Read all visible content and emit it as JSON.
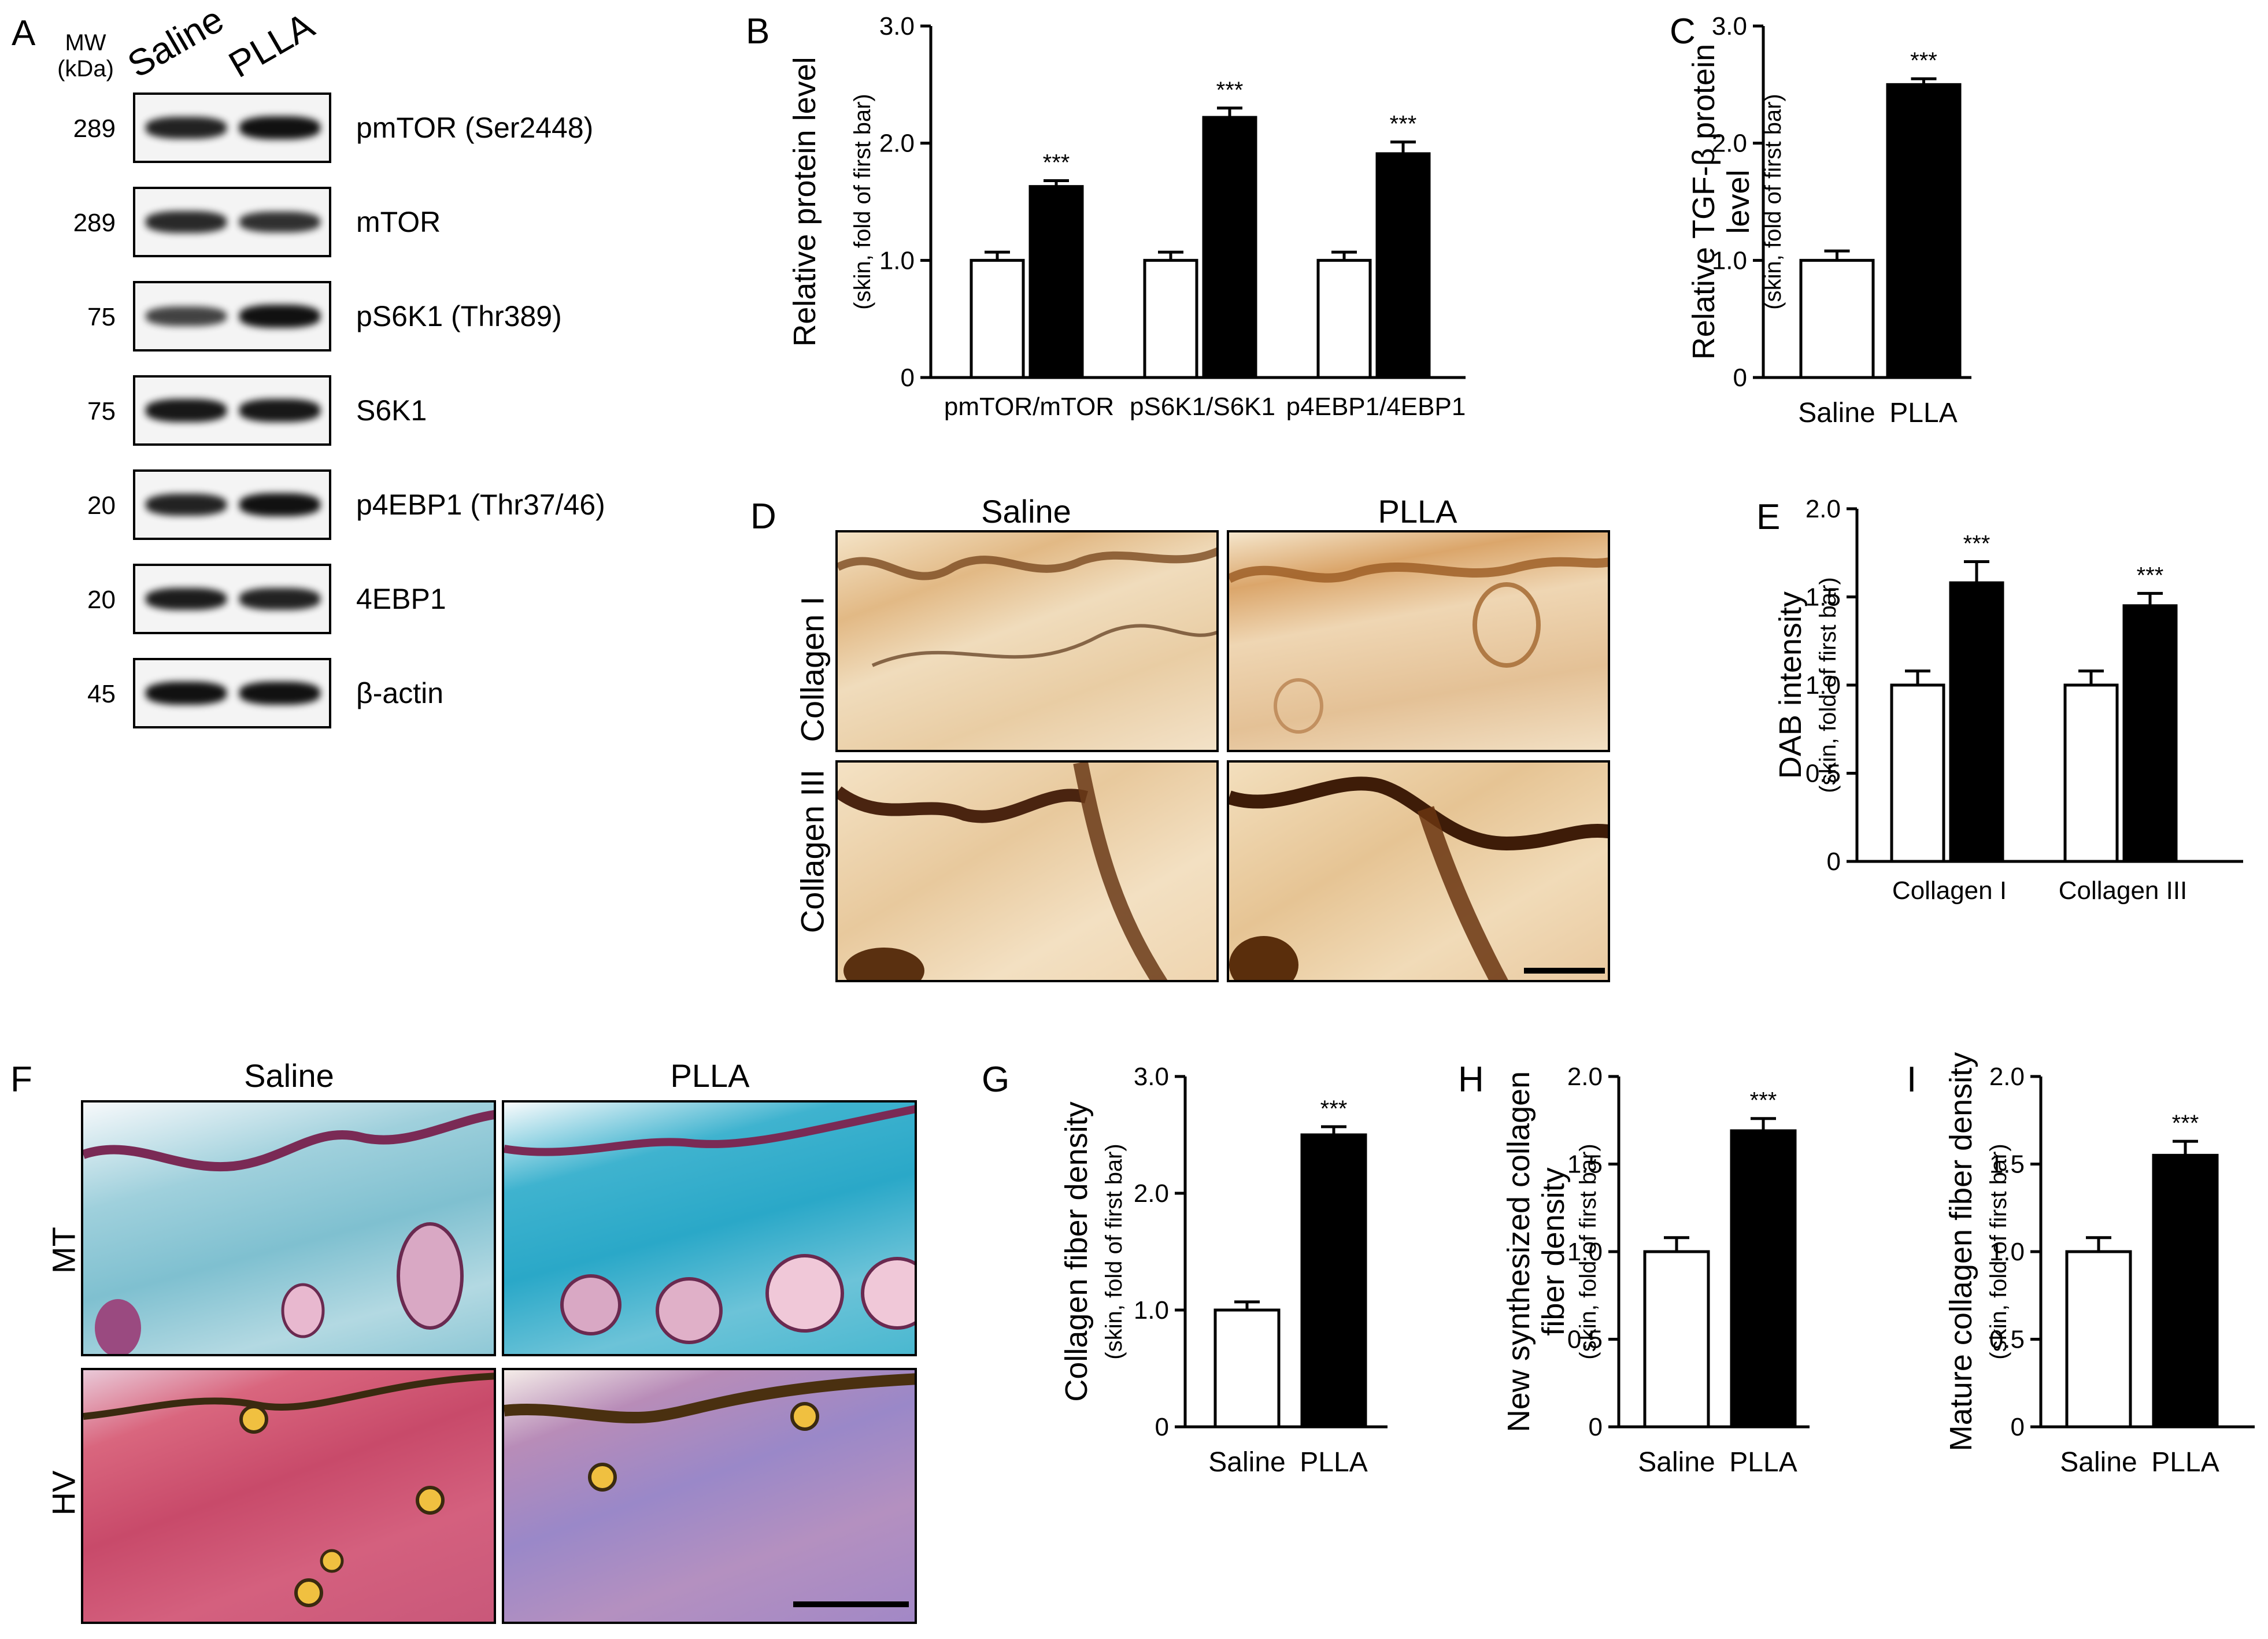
{
  "panels": {
    "A": {
      "letter": "A",
      "mw_header": [
        "MW",
        "(kDa)"
      ],
      "lanes": [
        "Saline",
        "PLLA"
      ],
      "rows": [
        {
          "mw": "289",
          "label": "pmTOR (Ser2448)",
          "intensity": [
            0.85,
            1.0
          ]
        },
        {
          "mw": "289",
          "label": "mTOR",
          "intensity": [
            0.8,
            0.75
          ]
        },
        {
          "mw": "75",
          "label": "pS6K1 (Thr389)",
          "intensity": [
            0.6,
            1.0
          ]
        },
        {
          "mw": "75",
          "label": "S6K1",
          "intensity": [
            0.95,
            0.95
          ]
        },
        {
          "mw": "20",
          "label": "p4EBP1 (Thr37/46)",
          "intensity": [
            0.85,
            1.0
          ]
        },
        {
          "mw": "20",
          "label": "4EBP1",
          "intensity": [
            0.9,
            0.85
          ]
        },
        {
          "mw": "45",
          "label": "β-actin",
          "intensity": [
            1.0,
            1.0
          ]
        }
      ]
    },
    "D": {
      "letter": "D",
      "columns": [
        "Saline",
        "PLLA"
      ],
      "rows": [
        "Collagen I",
        "Collagen III"
      ]
    },
    "F": {
      "letter": "F",
      "columns": [
        "Saline",
        "PLLA"
      ],
      "rows": [
        "MT",
        "HV"
      ]
    }
  },
  "chart_data": [
    {
      "id": "B",
      "letter": "B",
      "type": "bar",
      "categories": [
        "pmTOR/mTOR",
        "pS6K1/S6K1",
        "p4EBP1/4EBP1"
      ],
      "series": [
        {
          "values": [
            1.0,
            1.0,
            1.0
          ],
          "errors": [
            0.07,
            0.07,
            0.07
          ],
          "color": "#ffffff"
        },
        {
          "values": [
            1.63,
            2.22,
            1.91
          ],
          "errors": [
            0.05,
            0.08,
            0.1
          ],
          "color": "#000000",
          "annotations": [
            "***",
            "***",
            "***"
          ]
        }
      ],
      "ylabel": "Relative protein level",
      "ylabel2": "(skin, fold of first bar)",
      "ylim": [
        0,
        3.0
      ],
      "yticks": [
        "0",
        "1.0",
        "2.0",
        "3.0"
      ],
      "ytick_values": [
        0,
        1,
        2,
        3
      ]
    },
    {
      "id": "C",
      "letter": "C",
      "type": "bar",
      "categories": [
        "Saline",
        "PLLA"
      ],
      "values": [
        1.0,
        2.5
      ],
      "errors": [
        0.08,
        0.05
      ],
      "colors": [
        "#ffffff",
        "#000000"
      ],
      "annotations": [
        "",
        "***"
      ],
      "ylabel": "Relative TGF-β protein",
      "ylabel2": "level",
      "ylabel3": "(skin, fold of first bar)",
      "ylim": [
        0,
        3.0
      ],
      "yticks": [
        "0",
        "1.0",
        "2.0",
        "3.0"
      ],
      "ytick_values": [
        0,
        1,
        2,
        3
      ]
    },
    {
      "id": "E",
      "letter": "E",
      "type": "bar",
      "categories": [
        "Collagen I",
        "Collagen III"
      ],
      "series": [
        {
          "values": [
            1.0,
            1.0
          ],
          "errors": [
            0.08,
            0.08
          ],
          "color": "#ffffff"
        },
        {
          "values": [
            1.58,
            1.45
          ],
          "errors": [
            0.12,
            0.07
          ],
          "color": "#000000",
          "annotations": [
            "***",
            "***"
          ]
        }
      ],
      "ylabel": "DAB intensity",
      "ylabel2": "(skin, fold of first bar)",
      "ylim": [
        0,
        2.0
      ],
      "yticks": [
        "0",
        "0.5",
        "1.0",
        "1.5",
        "2.0"
      ],
      "ytick_values": [
        0,
        0.5,
        1,
        1.5,
        2
      ]
    },
    {
      "id": "G",
      "letter": "G",
      "type": "bar",
      "categories": [
        "Saline",
        "PLLA"
      ],
      "values": [
        1.0,
        2.5
      ],
      "errors": [
        0.07,
        0.07
      ],
      "colors": [
        "#ffffff",
        "#000000"
      ],
      "annotations": [
        "",
        "***"
      ],
      "ylabel": "Collagen fiber density",
      "ylabel2": "(skin, fold of first bar)",
      "ylim": [
        0,
        3.0
      ],
      "yticks": [
        "0",
        "1.0",
        "2.0",
        "3.0"
      ],
      "ytick_values": [
        0,
        1,
        2,
        3
      ]
    },
    {
      "id": "H",
      "letter": "H",
      "type": "bar",
      "categories": [
        "Saline",
        "PLLA"
      ],
      "values": [
        1.0,
        1.69
      ],
      "errors": [
        0.08,
        0.07
      ],
      "colors": [
        "#ffffff",
        "#000000"
      ],
      "annotations": [
        "",
        "***"
      ],
      "ylabel": "New synthesized collagen",
      "ylabel2": "fiber density",
      "ylabel3": "(skin, fold of first bar)",
      "ylim": [
        0,
        2.0
      ],
      "yticks": [
        "0",
        "0.5",
        "1.0",
        "1.5",
        "2.0"
      ],
      "ytick_values": [
        0,
        0.5,
        1,
        1.5,
        2
      ]
    },
    {
      "id": "I",
      "letter": "I",
      "type": "bar",
      "categories": [
        "Saline",
        "PLLA"
      ],
      "values": [
        1.0,
        1.55
      ],
      "errors": [
        0.08,
        0.08
      ],
      "colors": [
        "#ffffff",
        "#000000"
      ],
      "annotations": [
        "",
        "***"
      ],
      "ylabel": "Mature collagen fiber density",
      "ylabel2": "(skin, fold of first bar)",
      "ylim": [
        0,
        2.0
      ],
      "yticks": [
        "0",
        "0.5",
        "1.0",
        "1.5",
        "2.0"
      ],
      "ytick_values": [
        0,
        0.5,
        1,
        1.5,
        2
      ]
    }
  ]
}
